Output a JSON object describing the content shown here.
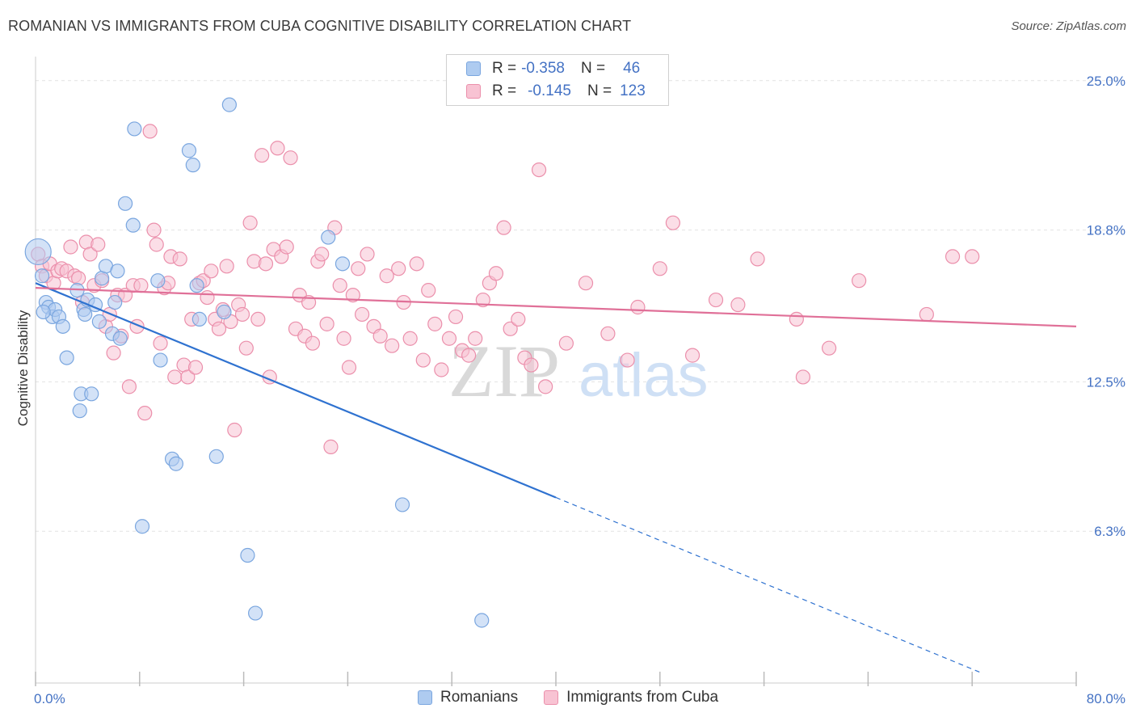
{
  "header": {
    "title": "ROMANIAN VS IMMIGRANTS FROM CUBA COGNITIVE DISABILITY CORRELATION CHART",
    "source": "Source: ZipAtlas.com"
  },
  "watermark": {
    "zip": "ZIP",
    "atlas": "atlas"
  },
  "legend": {
    "rows": [
      {
        "r_label": "R =",
        "r_value": "-0.358",
        "n_label": "N =",
        "n_value": "46"
      },
      {
        "r_label": "R =",
        "r_value": "-0.145",
        "n_label": "N =",
        "n_value": "123"
      }
    ]
  },
  "colors": {
    "blue_fill": "#aecbf0",
    "blue_stroke": "#7aa6df",
    "blue_line": "#2f72d0",
    "pink_fill": "#f8c3d3",
    "pink_stroke": "#eb8fab",
    "pink_line": "#e07098",
    "tick_text": "#4472c4",
    "grid": "#e2e2e2"
  },
  "chart_data": {
    "type": "scatter",
    "title": "ROMANIAN VS IMMIGRANTS FROM CUBA COGNITIVE DISABILITY CORRELATION CHART",
    "xlabel": "",
    "ylabel": "Cognitive Disability",
    "xlim": [
      0,
      80
    ],
    "ylim": [
      0,
      26
    ],
    "x_tick_labels": [
      "0.0%",
      "80.0%"
    ],
    "y_ticks": [
      6.3,
      12.5,
      18.8,
      25.0
    ],
    "y_tick_labels": [
      "6.3%",
      "12.5%",
      "18.8%",
      "25.0%"
    ],
    "legend_position": "top-center",
    "series": [
      {
        "name": "Romanians",
        "r": -0.358,
        "n": 46,
        "trend": {
          "x0": 0,
          "y0": 16.6,
          "x1": 40,
          "y1": 7.7,
          "dash_to_x": 72.8
        },
        "points": [
          [
            0.2,
            17.9
          ],
          [
            0.5,
            16.9
          ],
          [
            0.8,
            15.8
          ],
          [
            1.0,
            15.6
          ],
          [
            1.3,
            15.2
          ],
          [
            1.5,
            15.5
          ],
          [
            1.8,
            15.2
          ],
          [
            2.1,
            14.8
          ],
          [
            2.4,
            13.5
          ],
          [
            3.2,
            16.3
          ],
          [
            3.4,
            11.3
          ],
          [
            3.5,
            12.0
          ],
          [
            3.7,
            15.5
          ],
          [
            3.8,
            15.3
          ],
          [
            4.0,
            15.9
          ],
          [
            4.3,
            12.0
          ],
          [
            4.6,
            15.7
          ],
          [
            4.9,
            15.0
          ],
          [
            5.1,
            16.8
          ],
          [
            5.4,
            17.3
          ],
          [
            5.9,
            14.5
          ],
          [
            6.1,
            15.8
          ],
          [
            6.3,
            17.1
          ],
          [
            6.5,
            14.3
          ],
          [
            6.9,
            19.9
          ],
          [
            7.5,
            19.0
          ],
          [
            7.6,
            23.0
          ],
          [
            8.2,
            6.5
          ],
          [
            9.4,
            16.7
          ],
          [
            9.6,
            13.4
          ],
          [
            10.5,
            9.3
          ],
          [
            10.8,
            9.1
          ],
          [
            11.8,
            22.1
          ],
          [
            12.1,
            21.5
          ],
          [
            12.4,
            16.5
          ],
          [
            12.6,
            15.1
          ],
          [
            13.9,
            9.4
          ],
          [
            14.5,
            15.4
          ],
          [
            14.9,
            24.0
          ],
          [
            16.3,
            5.3
          ],
          [
            16.9,
            2.9
          ],
          [
            22.5,
            18.5
          ],
          [
            23.6,
            17.4
          ],
          [
            28.2,
            7.4
          ],
          [
            34.3,
            2.6
          ],
          [
            0.6,
            15.4
          ]
        ]
      },
      {
        "name": "Immigrants from Cuba",
        "r": -0.145,
        "n": 123,
        "trend": {
          "x0": 0,
          "y0": 16.4,
          "x1": 80,
          "y1": 14.8
        },
        "points": [
          [
            0.2,
            17.8
          ],
          [
            0.5,
            17.3
          ],
          [
            0.8,
            16.9
          ],
          [
            1.1,
            17.4
          ],
          [
            1.4,
            16.6
          ],
          [
            1.7,
            17.1
          ],
          [
            2.0,
            17.2
          ],
          [
            2.4,
            17.1
          ],
          [
            2.7,
            18.1
          ],
          [
            3.0,
            16.9
          ],
          [
            3.3,
            16.8
          ],
          [
            3.6,
            15.8
          ],
          [
            3.9,
            18.3
          ],
          [
            4.2,
            17.8
          ],
          [
            4.5,
            16.5
          ],
          [
            4.8,
            18.2
          ],
          [
            5.1,
            16.7
          ],
          [
            5.4,
            14.8
          ],
          [
            5.7,
            15.3
          ],
          [
            6.0,
            13.7
          ],
          [
            6.3,
            16.1
          ],
          [
            6.6,
            14.4
          ],
          [
            6.9,
            16.1
          ],
          [
            7.2,
            12.3
          ],
          [
            7.5,
            16.5
          ],
          [
            7.8,
            14.8
          ],
          [
            8.1,
            16.5
          ],
          [
            8.4,
            11.2
          ],
          [
            8.8,
            22.9
          ],
          [
            9.1,
            18.8
          ],
          [
            9.3,
            18.2
          ],
          [
            9.6,
            14.1
          ],
          [
            9.9,
            16.4
          ],
          [
            10.2,
            16.6
          ],
          [
            10.4,
            17.7
          ],
          [
            10.7,
            12.7
          ],
          [
            11.1,
            17.6
          ],
          [
            11.4,
            13.2
          ],
          [
            11.7,
            12.7
          ],
          [
            12.0,
            15.1
          ],
          [
            12.3,
            13.1
          ],
          [
            12.6,
            16.6
          ],
          [
            12.9,
            16.7
          ],
          [
            13.2,
            16.0
          ],
          [
            13.5,
            17.1
          ],
          [
            13.8,
            15.1
          ],
          [
            14.1,
            14.7
          ],
          [
            14.4,
            15.5
          ],
          [
            14.7,
            17.3
          ],
          [
            15.0,
            15.0
          ],
          [
            15.3,
            10.5
          ],
          [
            15.6,
            15.7
          ],
          [
            15.9,
            15.3
          ],
          [
            16.2,
            13.9
          ],
          [
            16.5,
            19.1
          ],
          [
            16.8,
            17.5
          ],
          [
            17.1,
            15.1
          ],
          [
            17.4,
            21.9
          ],
          [
            17.7,
            17.4
          ],
          [
            18.0,
            12.7
          ],
          [
            18.3,
            18.0
          ],
          [
            18.6,
            22.2
          ],
          [
            18.9,
            17.7
          ],
          [
            19.3,
            18.1
          ],
          [
            19.6,
            21.8
          ],
          [
            20.0,
            14.7
          ],
          [
            20.3,
            16.1
          ],
          [
            20.7,
            14.4
          ],
          [
            21.0,
            15.8
          ],
          [
            21.3,
            14.1
          ],
          [
            21.7,
            17.5
          ],
          [
            22.0,
            17.8
          ],
          [
            22.4,
            14.9
          ],
          [
            22.7,
            9.8
          ],
          [
            23.0,
            18.9
          ],
          [
            23.4,
            16.5
          ],
          [
            23.7,
            14.3
          ],
          [
            24.1,
            13.1
          ],
          [
            24.4,
            16.1
          ],
          [
            24.8,
            17.2
          ],
          [
            25.1,
            15.3
          ],
          [
            25.5,
            17.8
          ],
          [
            26.0,
            14.8
          ],
          [
            26.5,
            14.4
          ],
          [
            27.0,
            16.9
          ],
          [
            27.4,
            14.0
          ],
          [
            27.9,
            17.2
          ],
          [
            28.3,
            15.8
          ],
          [
            28.8,
            14.3
          ],
          [
            29.3,
            17.4
          ],
          [
            29.8,
            13.4
          ],
          [
            30.2,
            16.3
          ],
          [
            30.7,
            14.9
          ],
          [
            31.2,
            13.0
          ],
          [
            31.8,
            14.3
          ],
          [
            32.3,
            15.2
          ],
          [
            32.8,
            13.8
          ],
          [
            33.3,
            13.6
          ],
          [
            33.8,
            14.3
          ],
          [
            34.4,
            15.9
          ],
          [
            34.9,
            16.6
          ],
          [
            35.4,
            17.0
          ],
          [
            36.0,
            18.9
          ],
          [
            36.5,
            14.7
          ],
          [
            37.1,
            15.1
          ],
          [
            37.6,
            13.5
          ],
          [
            38.1,
            13.2
          ],
          [
            38.7,
            21.3
          ],
          [
            39.2,
            12.3
          ],
          [
            40.8,
            14.1
          ],
          [
            42.3,
            16.6
          ],
          [
            44.0,
            14.5
          ],
          [
            45.5,
            13.4
          ],
          [
            46.3,
            15.6
          ],
          [
            48.0,
            17.2
          ],
          [
            49.0,
            19.1
          ],
          [
            50.5,
            13.6
          ],
          [
            52.3,
            15.9
          ],
          [
            54.0,
            15.7
          ],
          [
            55.5,
            17.6
          ],
          [
            58.5,
            15.1
          ],
          [
            59.0,
            12.7
          ],
          [
            61.0,
            13.9
          ],
          [
            63.3,
            16.7
          ],
          [
            68.5,
            15.3
          ],
          [
            70.5,
            17.7
          ],
          [
            72.0,
            17.7
          ]
        ]
      }
    ]
  },
  "bottom_legend": [
    "Romanians",
    "Immigrants from Cuba"
  ]
}
